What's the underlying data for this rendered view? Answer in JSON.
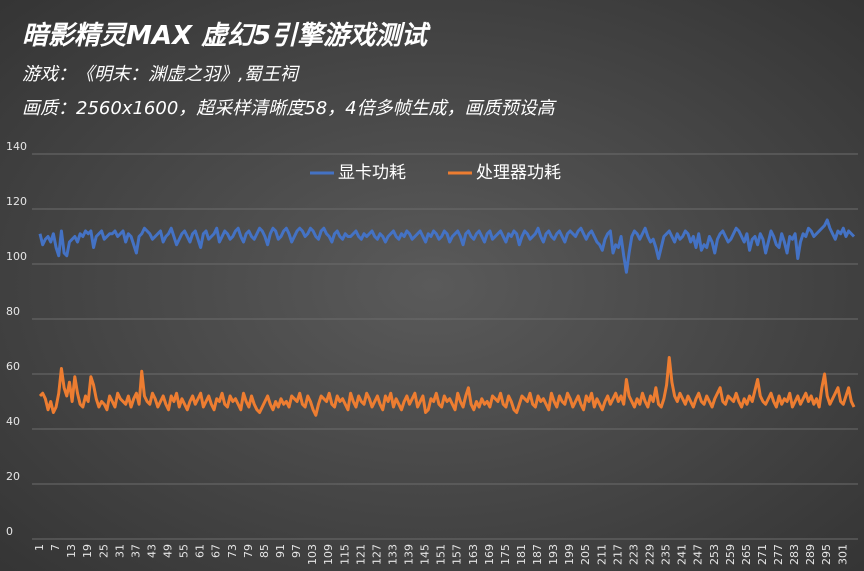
{
  "chart_data": {
    "type": "line",
    "title": "暗影精灵MAX 虚幻5引擎游戏测试",
    "subtitle": "游戏：《明末：渊虚之羽》,蜀王祠",
    "annotation": "画质：2560x1600，超采样清晰度58，4倍多帧生成，画质预设高",
    "ylim": [
      0,
      140
    ],
    "yticks": [
      0,
      20,
      40,
      60,
      80,
      100,
      120,
      140
    ],
    "grid": true,
    "legend": "top",
    "categories": [
      "1",
      null,
      null,
      null,
      null,
      null,
      "7",
      null,
      null,
      null,
      null,
      null,
      "13",
      null,
      null,
      null,
      null,
      null,
      "19",
      null,
      null,
      null,
      null,
      null,
      "25",
      null,
      null,
      null,
      null,
      null,
      "31",
      null,
      null,
      null,
      null,
      null,
      "37",
      null,
      null,
      null,
      null,
      null,
      "43",
      null,
      null,
      null,
      null,
      null,
      "49",
      null,
      null,
      null,
      null,
      null,
      "55",
      null,
      null,
      null,
      null,
      null,
      "61",
      null,
      null,
      null,
      null,
      null,
      "67",
      null,
      null,
      null,
      null,
      null,
      "73",
      null,
      null,
      null,
      null,
      null,
      "79",
      null,
      null,
      null,
      null,
      null,
      "85",
      null,
      null,
      null,
      null,
      null,
      "91",
      null,
      null,
      null,
      null,
      null,
      "97",
      null,
      null,
      null,
      null,
      null,
      "103",
      null,
      null,
      null,
      null,
      null,
      "109",
      null,
      null,
      null,
      null,
      null,
      "115",
      null,
      null,
      null,
      null,
      null,
      "121",
      null,
      null,
      null,
      null,
      null,
      "127",
      null,
      null,
      null,
      null,
      null,
      "133",
      null,
      null,
      null,
      null,
      null,
      "139",
      null,
      null,
      null,
      null,
      null,
      "145",
      null,
      null,
      null,
      null,
      null,
      "151",
      null,
      null,
      null,
      null,
      null,
      "157",
      null,
      null,
      null,
      null,
      null,
      "163",
      null,
      null,
      null,
      null,
      null,
      "169",
      null,
      null,
      null,
      null,
      null,
      "175",
      null,
      null,
      null,
      null,
      null,
      "181",
      null,
      null,
      null,
      null,
      null,
      "187",
      null,
      null,
      null,
      null,
      null,
      "193",
      null,
      null,
      null,
      null,
      null,
      "199",
      null,
      null,
      null,
      null,
      null,
      "205",
      null,
      null,
      null,
      null,
      null,
      "211",
      null,
      null,
      null,
      null,
      null,
      "217",
      null,
      null,
      null,
      null,
      null,
      "223",
      null,
      null,
      null,
      null,
      null,
      "229",
      null,
      null,
      null,
      null,
      null,
      "235",
      null,
      null,
      null,
      null,
      null,
      "241",
      null,
      null,
      null,
      null,
      null,
      "247",
      null,
      null,
      null,
      null,
      null,
      "253",
      null,
      null,
      null,
      null,
      null,
      "259",
      null,
      null,
      null,
      null,
      null,
      "265",
      null,
      null,
      null,
      null,
      null,
      "271",
      null,
      null,
      null,
      null,
      null,
      "277",
      null,
      null,
      null,
      null,
      null,
      "283",
      null,
      null,
      null,
      null,
      null,
      "289",
      null,
      null,
      null,
      null,
      null,
      "295",
      null,
      null,
      null,
      null,
      null,
      "301",
      null,
      null,
      null,
      null
    ],
    "series": [
      {
        "name": "显卡功耗",
        "color": "#4472c4",
        "values": [
          111,
          107,
          109,
          110,
          108,
          111,
          106,
          103,
          112,
          104,
          103,
          108,
          109,
          110,
          108,
          111,
          110,
          112,
          111,
          112,
          106,
          110,
          111,
          112,
          109,
          110,
          111,
          111,
          112,
          110,
          111,
          112,
          108,
          111,
          110,
          107,
          104,
          110,
          111,
          113,
          112,
          111,
          109,
          110,
          111,
          112,
          108,
          110,
          111,
          113,
          110,
          107,
          109,
          111,
          112,
          110,
          108,
          111,
          112,
          109,
          106,
          111,
          112,
          109,
          110,
          111,
          113,
          108,
          110,
          112,
          111,
          109,
          110,
          112,
          113,
          110,
          108,
          111,
          112,
          110,
          109,
          111,
          113,
          112,
          110,
          107,
          111,
          113,
          112,
          109,
          110,
          112,
          113,
          111,
          108,
          110,
          112,
          113,
          112,
          110,
          111,
          113,
          112,
          110,
          109,
          112,
          113,
          111,
          110,
          108,
          111,
          112,
          110,
          109,
          111,
          110,
          110,
          111,
          112,
          110,
          109,
          111,
          110,
          111,
          112,
          110,
          109,
          111,
          110,
          108,
          110,
          111,
          112,
          110,
          109,
          111,
          110,
          112,
          111,
          109,
          110,
          111,
          112,
          110,
          108,
          111,
          110,
          112,
          111,
          109,
          110,
          112,
          111,
          108,
          110,
          111,
          112,
          110,
          107,
          111,
          112,
          110,
          109,
          111,
          112,
          110,
          108,
          111,
          112,
          109,
          110,
          111,
          112,
          110,
          108,
          111,
          110,
          112,
          111,
          107,
          110,
          112,
          111,
          109,
          110,
          111,
          113,
          110,
          108,
          111,
          112,
          110,
          109,
          111,
          112,
          110,
          108,
          111,
          112,
          111,
          110,
          112,
          113,
          111,
          109,
          111,
          112,
          110,
          108,
          107,
          105,
          109,
          111,
          112,
          104,
          107,
          106,
          110,
          103,
          97,
          104,
          110,
          112,
          111,
          109,
          111,
          113,
          110,
          108,
          109,
          106,
          102,
          106,
          110,
          111,
          112,
          110,
          108,
          111,
          109,
          110,
          112,
          111,
          108,
          110,
          106,
          111,
          105,
          107,
          106,
          110,
          108,
          104,
          109,
          111,
          112,
          110,
          108,
          109,
          111,
          113,
          112,
          110,
          108,
          111,
          105,
          109,
          110,
          107,
          111,
          109,
          104,
          108,
          112,
          110,
          107,
          106,
          111,
          108,
          104,
          110,
          109,
          111,
          102,
          108,
          111,
          110,
          113,
          112,
          110,
          111,
          112,
          113,
          114,
          116,
          113,
          111,
          109,
          112,
          111,
          113,
          110,
          112,
          111,
          110
        ]
      },
      {
        "name": "处理器功耗",
        "color": "#ed7d31",
        "values": [
          52,
          53,
          51,
          47,
          50,
          46,
          48,
          53,
          62,
          55,
          52,
          57,
          50,
          59,
          53,
          49,
          48,
          52,
          50,
          59,
          56,
          51,
          48,
          50,
          49,
          47,
          52,
          50,
          48,
          53,
          51,
          50,
          49,
          52,
          48,
          51,
          53,
          49,
          61,
          52,
          50,
          49,
          53,
          51,
          48,
          50,
          52,
          49,
          47,
          52,
          50,
          53,
          48,
          51,
          49,
          47,
          50,
          52,
          49,
          51,
          53,
          48,
          50,
          52,
          49,
          47,
          51,
          50,
          53,
          49,
          48,
          52,
          50,
          51,
          49,
          47,
          53,
          50,
          48,
          52,
          49,
          47,
          46,
          48,
          50,
          52,
          49,
          47,
          50,
          48,
          51,
          49,
          50,
          48,
          52,
          51,
          50,
          53,
          49,
          48,
          52,
          50,
          47,
          45,
          49,
          52,
          51,
          50,
          53,
          49,
          48,
          52,
          50,
          51,
          49,
          47,
          53,
          50,
          48,
          52,
          50,
          49,
          53,
          51,
          48,
          50,
          52,
          49,
          47,
          52,
          50,
          53,
          48,
          51,
          49,
          47,
          50,
          52,
          49,
          51,
          53,
          48,
          50,
          52,
          46,
          47,
          51,
          50,
          53,
          49,
          48,
          52,
          50,
          51,
          49,
          47,
          53,
          50,
          48,
          52,
          55,
          49,
          47,
          50,
          48,
          51,
          49,
          50,
          48,
          52,
          51,
          50,
          53,
          49,
          48,
          52,
          50,
          47,
          46,
          49,
          52,
          51,
          50,
          53,
          49,
          48,
          52,
          50,
          51,
          49,
          47,
          53,
          50,
          48,
          52,
          50,
          49,
          53,
          51,
          48,
          50,
          52,
          49,
          47,
          52,
          50,
          53,
          48,
          51,
          49,
          47,
          50,
          52,
          49,
          51,
          53,
          50,
          52,
          49,
          58,
          52,
          50,
          48,
          51,
          49,
          53,
          50,
          48,
          52,
          50,
          55,
          49,
          48,
          51,
          56,
          66,
          57,
          52,
          50,
          53,
          51,
          49,
          52,
          50,
          48,
          51,
          53,
          50,
          49,
          52,
          50,
          48,
          51,
          53,
          55,
          50,
          49,
          52,
          51,
          50,
          53,
          50,
          48,
          51,
          49,
          52,
          50,
          54,
          58,
          52,
          50,
          49,
          51,
          53,
          50,
          48,
          52,
          49,
          51,
          50,
          53,
          48,
          50,
          52,
          49,
          51,
          53,
          50,
          52,
          49,
          51,
          48,
          55,
          60,
          52,
          49,
          51,
          53,
          55,
          50,
          49,
          52,
          55,
          50,
          48
        ]
      }
    ]
  }
}
